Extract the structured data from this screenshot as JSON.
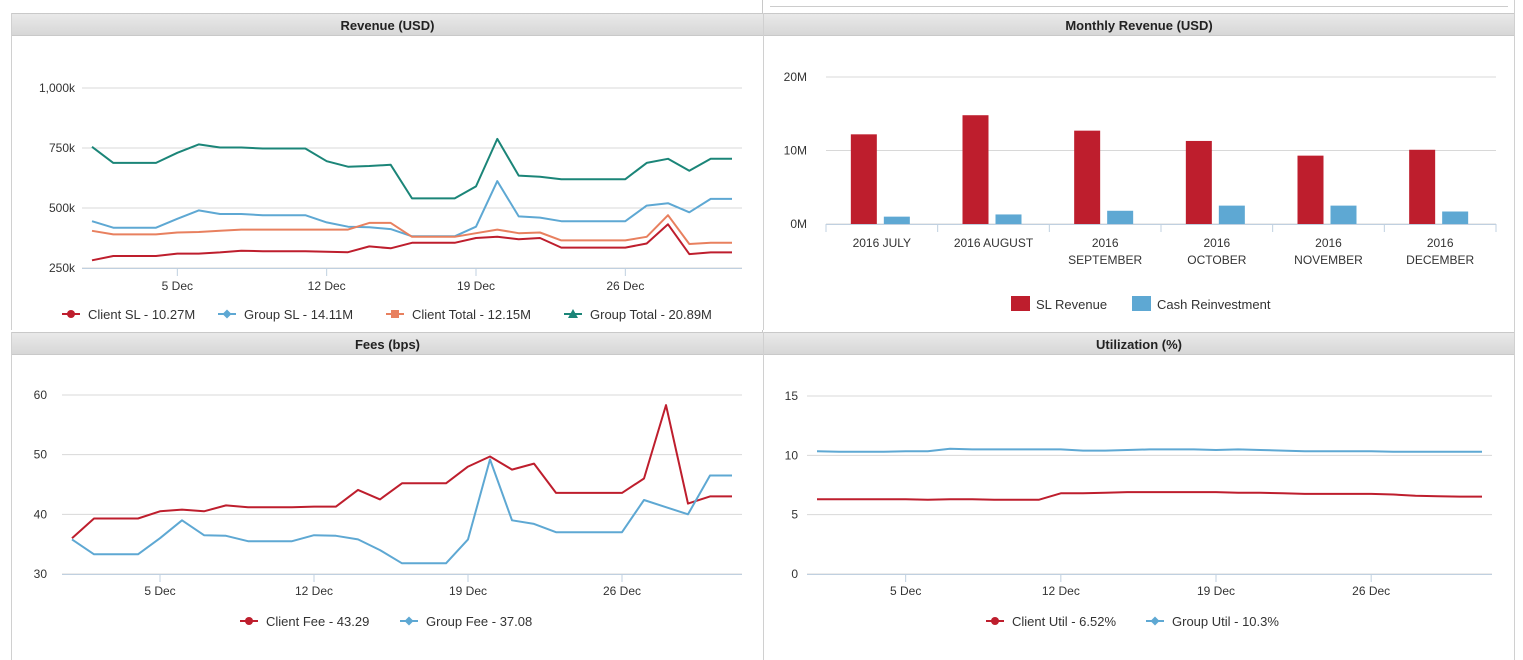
{
  "panels": {
    "revenue": {
      "title": "Revenue (USD)"
    },
    "monthly": {
      "title": "Monthly Revenue (USD)"
    },
    "fees": {
      "title": "Fees (bps)"
    },
    "utilization": {
      "title": "Utilization (%)"
    }
  },
  "colors": {
    "red": "#be1e2d",
    "blue": "#5ea8d3",
    "orange": "#e8805f",
    "teal": "#1b8578",
    "grid": "#d8d8d8"
  },
  "chart_data": [
    {
      "id": "revenue",
      "type": "line",
      "title": "Revenue (USD)",
      "ylim": [
        250000,
        1000000
      ],
      "yticks": [
        250000,
        500000,
        750000,
        1000000
      ],
      "ytick_labels": [
        "250k",
        "500k",
        "750k",
        "1,000k"
      ],
      "x_range": [
        1,
        31
      ],
      "xticks": [
        5,
        12,
        19,
        26
      ],
      "xtick_labels": [
        "5 Dec",
        "12 Dec",
        "19 Dec",
        "26 Dec"
      ],
      "x": [
        1,
        2,
        3,
        4,
        5,
        6,
        7,
        8,
        9,
        10,
        11,
        12,
        13,
        14,
        15,
        16,
        17,
        18,
        19,
        20,
        21,
        22,
        23,
        24,
        25,
        26,
        27,
        28,
        29,
        30,
        31
      ],
      "series": [
        {
          "name": "Client SL - 10.27M",
          "color": "#be1e2d",
          "marker": "circle",
          "values": [
            282000,
            300000,
            300000,
            300000,
            310000,
            310000,
            315000,
            322000,
            320000,
            320000,
            320000,
            318000,
            316000,
            340000,
            332000,
            355000,
            355000,
            355000,
            375000,
            380000,
            370000,
            375000,
            335000,
            335000,
            335000,
            335000,
            352000,
            432000,
            308000,
            315000,
            315000
          ]
        },
        {
          "name": "Group SL - 14.11M",
          "color": "#5ea8d3",
          "marker": "diamond",
          "values": [
            445000,
            418000,
            418000,
            418000,
            455000,
            490000,
            475000,
            475000,
            470000,
            470000,
            470000,
            440000,
            422000,
            420000,
            412000,
            382000,
            382000,
            382000,
            422000,
            612000,
            465000,
            460000,
            445000,
            445000,
            445000,
            445000,
            510000,
            520000,
            482000,
            538000,
            538000
          ]
        },
        {
          "name": "Client Total - 12.15M",
          "color": "#e8805f",
          "marker": "square",
          "values": [
            405000,
            390000,
            390000,
            390000,
            398000,
            400000,
            405000,
            410000,
            410000,
            410000,
            410000,
            410000,
            410000,
            438000,
            438000,
            380000,
            380000,
            380000,
            395000,
            410000,
            395000,
            398000,
            365000,
            365000,
            365000,
            365000,
            380000,
            470000,
            350000,
            355000,
            355000
          ]
        },
        {
          "name": "Group Total - 20.89M",
          "color": "#1b8578",
          "marker": "triangle",
          "values": [
            755000,
            688000,
            688000,
            688000,
            730000,
            765000,
            752000,
            752000,
            748000,
            748000,
            748000,
            695000,
            672000,
            675000,
            680000,
            540000,
            540000,
            540000,
            590000,
            788000,
            635000,
            630000,
            620000,
            620000,
            620000,
            620000,
            688000,
            705000,
            655000,
            705000,
            705000
          ]
        }
      ]
    },
    {
      "id": "monthly",
      "type": "bar",
      "title": "Monthly Revenue (USD)",
      "ylim": [
        0,
        20000000
      ],
      "yticks": [
        0,
        10000000,
        20000000
      ],
      "ytick_labels": [
        "0M",
        "10M",
        "20M"
      ],
      "categories": [
        [
          "2016 JULY"
        ],
        [
          "2016 AUGUST"
        ],
        [
          "2016",
          "SEPTEMBER"
        ],
        [
          "2016",
          "OCTOBER"
        ],
        [
          "2016",
          "NOVEMBER"
        ],
        [
          "2016",
          "DECEMBER"
        ]
      ],
      "series": [
        {
          "name": "SL Revenue",
          "color": "#be1e2d",
          "values": [
            12200000,
            14800000,
            12700000,
            11300000,
            9300000,
            10100000
          ]
        },
        {
          "name": "Cash Reinvestment",
          "color": "#5ea8d3",
          "values": [
            1000000,
            1300000,
            1800000,
            2500000,
            2500000,
            1700000
          ]
        }
      ]
    },
    {
      "id": "fees",
      "type": "line",
      "title": "Fees (bps)",
      "ylim": [
        30,
        60
      ],
      "yticks": [
        30,
        40,
        50,
        60
      ],
      "ytick_labels": [
        "30",
        "40",
        "50",
        "60"
      ],
      "x_range": [
        1,
        31
      ],
      "xticks": [
        5,
        12,
        19,
        26
      ],
      "xtick_labels": [
        "5 Dec",
        "12 Dec",
        "19 Dec",
        "26 Dec"
      ],
      "x": [
        1,
        2,
        3,
        4,
        5,
        6,
        7,
        8,
        9,
        10,
        11,
        12,
        13,
        14,
        15,
        16,
        17,
        18,
        19,
        20,
        21,
        22,
        23,
        24,
        25,
        26,
        27,
        28,
        29,
        30,
        31
      ],
      "series": [
        {
          "name": "Client Fee - 43.29",
          "color": "#be1e2d",
          "marker": "circle",
          "values": [
            36.0,
            39.3,
            39.3,
            39.3,
            40.5,
            40.8,
            40.5,
            41.5,
            41.2,
            41.2,
            41.2,
            41.3,
            41.3,
            44.1,
            42.5,
            45.2,
            45.2,
            45.2,
            48.0,
            49.7,
            47.5,
            48.5,
            43.6,
            43.6,
            43.6,
            43.6,
            46.0,
            58.3,
            41.8,
            43.0,
            43.0
          ]
        },
        {
          "name": "Group Fee - 37.08",
          "color": "#5ea8d3",
          "marker": "diamond",
          "values": [
            35.8,
            33.3,
            33.3,
            33.3,
            36.0,
            39.0,
            36.5,
            36.4,
            35.5,
            35.5,
            35.5,
            36.5,
            36.4,
            35.8,
            34.0,
            31.8,
            31.8,
            31.8,
            35.8,
            49.2,
            39.0,
            38.4,
            37.0,
            37.0,
            37.0,
            37.0,
            42.4,
            41.2,
            40.0,
            46.5,
            46.5
          ]
        }
      ]
    },
    {
      "id": "utilization",
      "type": "line",
      "title": "Utilization (%)",
      "ylim": [
        0,
        15
      ],
      "yticks": [
        0,
        5,
        10,
        15
      ],
      "ytick_labels": [
        "0",
        "5",
        "10",
        "15"
      ],
      "x_range": [
        1,
        31
      ],
      "xticks": [
        5,
        12,
        19,
        26
      ],
      "xtick_labels": [
        "5 Dec",
        "12 Dec",
        "19 Dec",
        "26 Dec"
      ],
      "x": [
        1,
        2,
        3,
        4,
        5,
        6,
        7,
        8,
        9,
        10,
        11,
        12,
        13,
        14,
        15,
        16,
        17,
        18,
        19,
        20,
        21,
        22,
        23,
        24,
        25,
        26,
        27,
        28,
        29,
        30,
        31
      ],
      "series": [
        {
          "name": "Client Util - 6.52%",
          "color": "#be1e2d",
          "marker": "circle",
          "values": [
            6.3,
            6.3,
            6.3,
            6.3,
            6.3,
            6.25,
            6.3,
            6.3,
            6.25,
            6.25,
            6.25,
            6.8,
            6.8,
            6.85,
            6.9,
            6.9,
            6.9,
            6.9,
            6.9,
            6.85,
            6.85,
            6.8,
            6.75,
            6.75,
            6.75,
            6.75,
            6.7,
            6.6,
            6.55,
            6.52,
            6.52
          ]
        },
        {
          "name": "Group Util - 10.3%",
          "color": "#5ea8d3",
          "marker": "diamond",
          "values": [
            10.35,
            10.3,
            10.3,
            10.3,
            10.35,
            10.35,
            10.55,
            10.5,
            10.5,
            10.5,
            10.5,
            10.5,
            10.4,
            10.4,
            10.45,
            10.5,
            10.5,
            10.5,
            10.45,
            10.5,
            10.45,
            10.4,
            10.35,
            10.35,
            10.35,
            10.35,
            10.3,
            10.3,
            10.3,
            10.3,
            10.3
          ]
        }
      ]
    }
  ]
}
